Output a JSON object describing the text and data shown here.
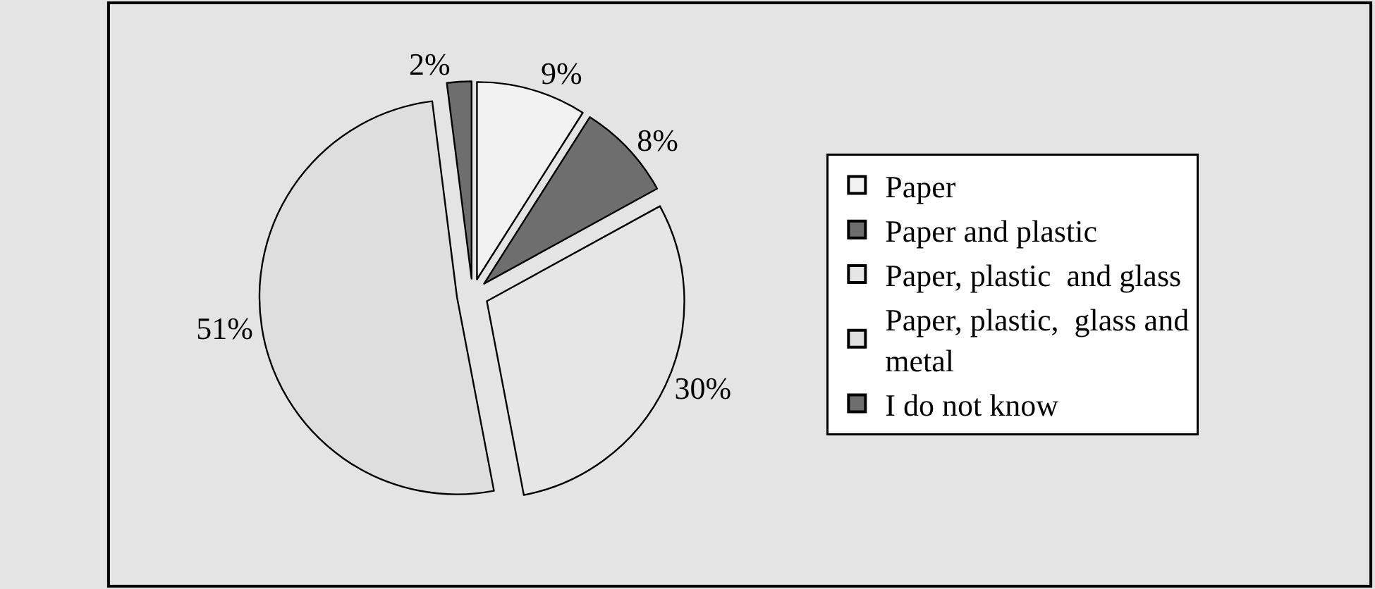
{
  "chart_data": {
    "type": "pie",
    "categories": [
      "Paper",
      "Paper and plastic",
      "Paper, plastic  and glass",
      "Paper, plastic,  glass and metal",
      "I do not know"
    ],
    "values": [
      9,
      8,
      30,
      51,
      2
    ],
    "colors": [
      "#f2f2f2",
      "#6e6e6e",
      "#e6e6e6",
      "#dedede",
      "#6e6e6e"
    ],
    "value_labels": [
      "9%",
      "8%",
      "30%",
      "51%",
      "2%"
    ],
    "legend": "right"
  }
}
